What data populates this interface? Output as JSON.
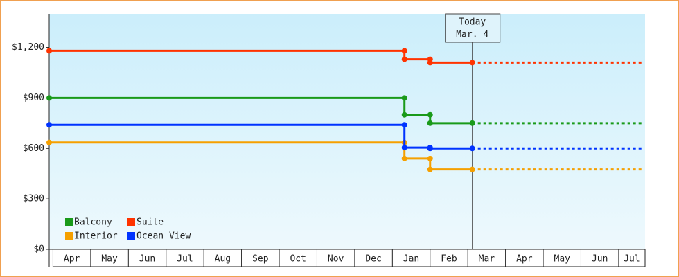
{
  "chart_data": {
    "type": "step-line",
    "x": [
      -0.1,
      9.32,
      9.32,
      10.0,
      10.0,
      11.12,
      15.63
    ],
    "xlim": [
      -0.1,
      15.7
    ],
    "xticks": [
      {
        "value": 0.5,
        "label": "Apr"
      },
      {
        "value": 1.5,
        "label": "May"
      },
      {
        "value": 2.5,
        "label": "Jun"
      },
      {
        "value": 3.5,
        "label": "Jul"
      },
      {
        "value": 4.5,
        "label": "Aug"
      },
      {
        "value": 5.5,
        "label": "Sep"
      },
      {
        "value": 6.5,
        "label": "Oct"
      },
      {
        "value": 7.5,
        "label": "Nov"
      },
      {
        "value": 8.5,
        "label": "Dec"
      },
      {
        "value": 9.5,
        "label": "Jan"
      },
      {
        "value": 10.5,
        "label": "Feb"
      },
      {
        "value": 11.5,
        "label": "Mar"
      },
      {
        "value": 12.5,
        "label": "Apr"
      },
      {
        "value": 13.5,
        "label": "May"
      },
      {
        "value": 14.5,
        "label": "Jun"
      },
      {
        "value": 15.35,
        "label": "Jul"
      }
    ],
    "ylim": [
      0,
      1400
    ],
    "yticks": [
      {
        "value": 0,
        "label": "$0"
      },
      {
        "value": 300,
        "label": "$300"
      },
      {
        "value": 600,
        "label": "$600"
      },
      {
        "value": 900,
        "label": "$900"
      },
      {
        "value": 1200,
        "label": "$1,200"
      }
    ],
    "annotation": {
      "x": 11.12,
      "lines": [
        "Today",
        "Mar. 4"
      ]
    },
    "series": [
      {
        "name": "Balcony",
        "color": "#1a9a1a",
        "values": [
          900,
          900,
          800,
          800,
          750,
          750,
          750
        ]
      },
      {
        "name": "Suite",
        "color": "#ff3300",
        "values": [
          1180,
          1180,
          1130,
          1130,
          1110,
          1110,
          1110
        ]
      },
      {
        "name": "Interior",
        "color": "#f5a000",
        "values": [
          635,
          635,
          540,
          540,
          475,
          475,
          475
        ]
      },
      {
        "name": "Ocean View",
        "color": "#0033ff",
        "values": [
          740,
          740,
          605,
          605,
          600,
          600,
          600
        ]
      }
    ]
  }
}
